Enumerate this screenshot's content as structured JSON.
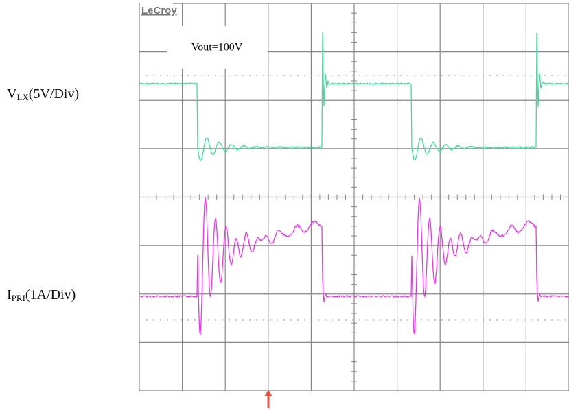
{
  "logo": "LeCroy",
  "annotation": "Vout=100V",
  "trace_labels": [
    {
      "symbol": "V",
      "subscript": "LX",
      "scale": "(5V/Div)"
    },
    {
      "symbol": "I",
      "subscript": "PRI",
      "scale": "(1A/Div)"
    }
  ]
}
